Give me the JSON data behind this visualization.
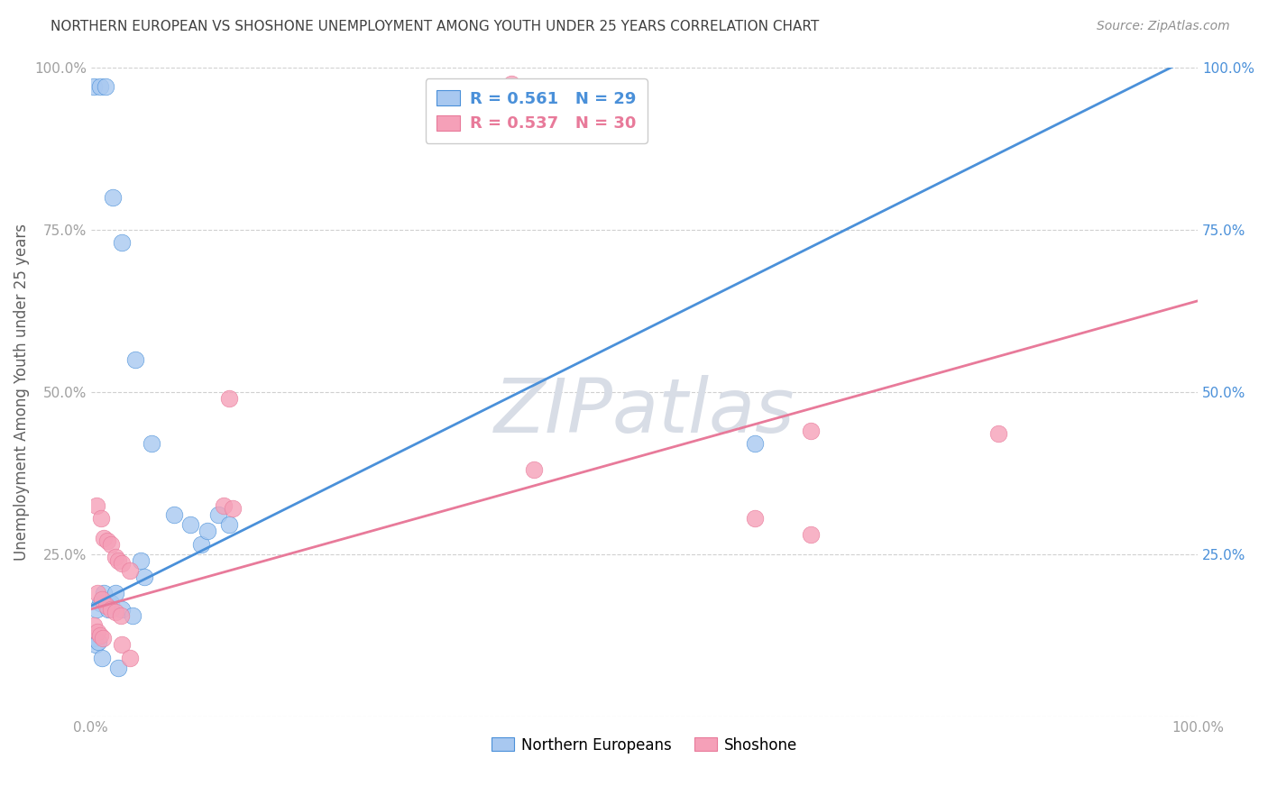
{
  "title": "NORTHERN EUROPEAN VS SHOSHONE UNEMPLOYMENT AMONG YOUTH UNDER 25 YEARS CORRELATION CHART",
  "source": "Source: ZipAtlas.com",
  "ylabel": "Unemployment Among Youth under 25 years",
  "watermark": "ZIPatlas",
  "blue_label": "Northern Europeans",
  "pink_label": "Shoshone",
  "blue_R": 0.561,
  "blue_N": 29,
  "pink_R": 0.537,
  "pink_N": 30,
  "blue_scatter": [
    [
      0.003,
      0.97
    ],
    [
      0.008,
      0.97
    ],
    [
      0.013,
      0.97
    ],
    [
      0.02,
      0.8
    ],
    [
      0.028,
      0.73
    ],
    [
      0.04,
      0.55
    ],
    [
      0.055,
      0.42
    ],
    [
      0.075,
      0.31
    ],
    [
      0.09,
      0.295
    ],
    [
      0.1,
      0.265
    ],
    [
      0.105,
      0.285
    ],
    [
      0.115,
      0.31
    ],
    [
      0.125,
      0.295
    ],
    [
      0.045,
      0.24
    ],
    [
      0.008,
      0.175
    ],
    [
      0.012,
      0.19
    ],
    [
      0.018,
      0.175
    ],
    [
      0.022,
      0.19
    ],
    [
      0.005,
      0.165
    ],
    [
      0.016,
      0.165
    ],
    [
      0.028,
      0.165
    ],
    [
      0.038,
      0.155
    ],
    [
      0.048,
      0.215
    ],
    [
      0.002,
      0.12
    ],
    [
      0.004,
      0.11
    ],
    [
      0.007,
      0.115
    ],
    [
      0.01,
      0.09
    ],
    [
      0.025,
      0.075
    ],
    [
      0.6,
      0.42
    ]
  ],
  "pink_scatter": [
    [
      0.38,
      0.975
    ],
    [
      0.65,
      0.44
    ],
    [
      0.82,
      0.435
    ],
    [
      0.6,
      0.305
    ],
    [
      0.65,
      0.28
    ],
    [
      0.125,
      0.49
    ],
    [
      0.4,
      0.38
    ],
    [
      0.12,
      0.325
    ],
    [
      0.128,
      0.32
    ],
    [
      0.005,
      0.325
    ],
    [
      0.009,
      0.305
    ],
    [
      0.012,
      0.275
    ],
    [
      0.015,
      0.27
    ],
    [
      0.018,
      0.265
    ],
    [
      0.022,
      0.245
    ],
    [
      0.025,
      0.24
    ],
    [
      0.028,
      0.235
    ],
    [
      0.035,
      0.225
    ],
    [
      0.006,
      0.19
    ],
    [
      0.01,
      0.18
    ],
    [
      0.014,
      0.17
    ],
    [
      0.018,
      0.165
    ],
    [
      0.022,
      0.16
    ],
    [
      0.027,
      0.155
    ],
    [
      0.003,
      0.14
    ],
    [
      0.006,
      0.13
    ],
    [
      0.008,
      0.125
    ],
    [
      0.011,
      0.12
    ],
    [
      0.028,
      0.11
    ],
    [
      0.035,
      0.09
    ]
  ],
  "blue_line_x": [
    0.0,
    1.0
  ],
  "blue_line_y": [
    0.17,
    1.02
  ],
  "pink_line_x": [
    0.0,
    1.0
  ],
  "pink_line_y": [
    0.165,
    0.64
  ],
  "xlim": [
    0,
    1.0
  ],
  "ylim": [
    0,
    1.0
  ],
  "xticks": [
    0.0,
    0.2,
    0.4,
    0.6,
    0.8,
    1.0
  ],
  "xtick_labels": [
    "0.0%",
    "",
    "",
    "",
    "",
    "100.0%"
  ],
  "yticks": [
    0.0,
    0.25,
    0.5,
    0.75,
    1.0
  ],
  "ytick_labels_left": [
    "",
    "25.0%",
    "50.0%",
    "75.0%",
    "100.0%"
  ],
  "ytick_labels_right": [
    "",
    "25.0%",
    "50.0%",
    "75.0%",
    "100.0%"
  ],
  "blue_line_color": "#4a90d9",
  "pink_line_color": "#e87a9a",
  "blue_scatter_color": "#a8c8f0",
  "pink_scatter_color": "#f5a0b8",
  "grid_color": "#d0d0d0",
  "watermark_color": "#d8dde6",
  "title_color": "#404040",
  "source_color": "#909090",
  "axis_label_color": "#606060",
  "tick_color": "#a0a0a0"
}
